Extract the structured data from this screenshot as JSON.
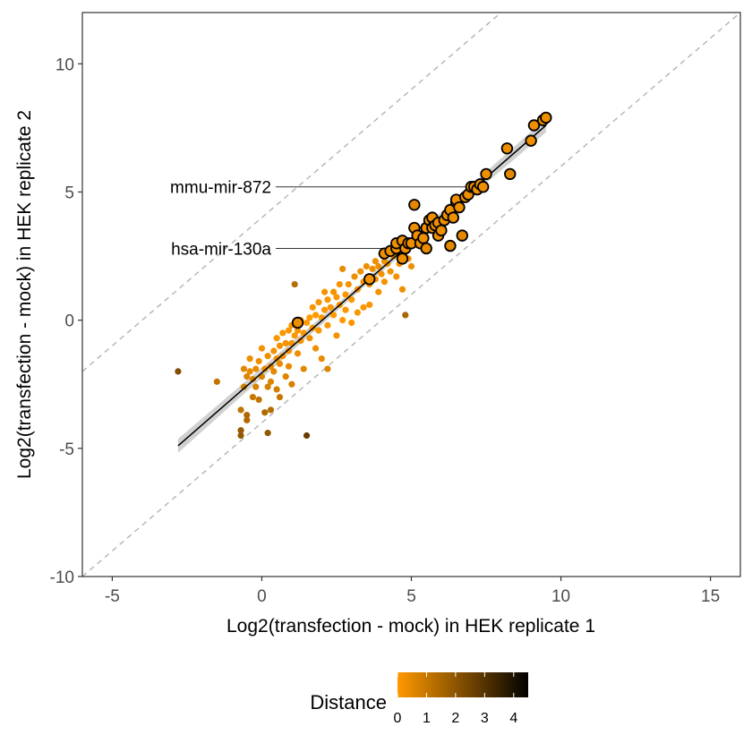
{
  "chart_data": {
    "type": "scatter",
    "xlabel": "Log2(transfection - mock) in HEK replicate 1",
    "ylabel": "Log2(transfection - mock) in HEK replicate 2",
    "xlim": [
      -6,
      16
    ],
    "ylim": [
      -10,
      12
    ],
    "x_ticks": [
      -5,
      0,
      5,
      10,
      15
    ],
    "y_ticks": [
      -10,
      -5,
      0,
      5,
      10
    ],
    "grid": false,
    "reference_lines": [
      {
        "intercept": 4,
        "slope": 1,
        "style": "dashed",
        "color": "#b3b3b3"
      },
      {
        "intercept": -4,
        "slope": 1,
        "style": "dashed",
        "color": "#b3b3b3"
      }
    ],
    "fit_line": {
      "x_start": -2.8,
      "y_start": -4.9,
      "x_end": 9.5,
      "y_end": 7.6,
      "color": "#000000",
      "ci_band_color": "#cccccc"
    },
    "color_scale": {
      "title": "Distance",
      "low_color": "#ff9900",
      "high_color": "#000000",
      "min": 0,
      "max": 4.5,
      "ticks": [
        0,
        1,
        2,
        3,
        4
      ],
      "legend_position": "bottom"
    },
    "annotations": [
      {
        "label": "mmu-mir-872",
        "x": 7.1,
        "y": 5.2
      },
      {
        "label": "hsa-mir-130a",
        "x": 4.3,
        "y": 2.8
      }
    ],
    "points_small": [
      [
        -2.8,
        -2.0,
        2.2
      ],
      [
        -1.5,
        -2.4,
        1.1
      ],
      [
        -0.7,
        -4.3,
        1.9
      ],
      [
        -0.7,
        -4.5,
        1.9
      ],
      [
        -0.7,
        -3.5,
        1.1
      ],
      [
        -0.6,
        -2.6,
        0.8
      ],
      [
        -0.6,
        -1.9,
        0.5
      ],
      [
        -0.5,
        -2.2,
        0.6
      ],
      [
        -0.5,
        -3.9,
        1.4
      ],
      [
        -0.5,
        -3.7,
        1.4
      ],
      [
        -0.4,
        -1.5,
        0.3
      ],
      [
        -0.4,
        -2.0,
        0.4
      ],
      [
        -0.3,
        -2.3,
        0.6
      ],
      [
        -0.3,
        -3.0,
        1.0
      ],
      [
        -0.2,
        -1.9,
        0.4
      ],
      [
        -0.2,
        -2.6,
        0.7
      ],
      [
        -0.1,
        -1.6,
        0.3
      ],
      [
        -0.1,
        -3.1,
        1.1
      ],
      [
        0.0,
        -2.2,
        0.6
      ],
      [
        0.0,
        -1.1,
        0.2
      ],
      [
        0.1,
        -1.9,
        0.4
      ],
      [
        0.1,
        -3.6,
        1.4
      ],
      [
        0.2,
        -1.4,
        0.3
      ],
      [
        0.2,
        -2.6,
        0.7
      ],
      [
        0.2,
        -4.4,
        1.9
      ],
      [
        0.3,
        -1.8,
        0.4
      ],
      [
        0.3,
        -2.4,
        0.6
      ],
      [
        0.3,
        -3.5,
        1.3
      ],
      [
        0.4,
        -1.2,
        0.2
      ],
      [
        0.4,
        -2.0,
        0.5
      ],
      [
        0.5,
        -0.7,
        0.1
      ],
      [
        0.5,
        -1.5,
        0.3
      ],
      [
        0.5,
        -2.7,
        0.8
      ],
      [
        0.6,
        -1.0,
        0.2
      ],
      [
        0.6,
        -1.7,
        0.4
      ],
      [
        0.6,
        -3.0,
        1.0
      ],
      [
        0.7,
        -0.5,
        0.1
      ],
      [
        0.7,
        -1.4,
        0.3
      ],
      [
        0.8,
        -0.9,
        0.2
      ],
      [
        0.8,
        -2.2,
        0.6
      ],
      [
        0.9,
        -0.4,
        0.1
      ],
      [
        0.9,
        -1.2,
        0.2
      ],
      [
        0.9,
        -1.8,
        0.4
      ],
      [
        1.0,
        -0.2,
        0.1
      ],
      [
        1.0,
        -0.9,
        0.2
      ],
      [
        1.0,
        -2.5,
        0.7
      ],
      [
        1.1,
        -0.6,
        0.1
      ],
      [
        1.1,
        1.4,
        1.3
      ],
      [
        1.2,
        -0.4,
        0.1
      ],
      [
        1.2,
        -1.3,
        0.3
      ],
      [
        1.3,
        0.0,
        0.0
      ],
      [
        1.3,
        -0.8,
        0.2
      ],
      [
        1.4,
        -0.5,
        0.1
      ],
      [
        1.4,
        -1.9,
        0.5
      ],
      [
        1.5,
        -4.5,
        2.7
      ],
      [
        1.5,
        -0.1,
        0.0
      ],
      [
        1.6,
        0.1,
        0.0
      ],
      [
        1.6,
        -0.7,
        0.2
      ],
      [
        1.7,
        0.5,
        0.1
      ],
      [
        1.7,
        -0.3,
        0.1
      ],
      [
        1.8,
        -1.1,
        0.3
      ],
      [
        1.8,
        0.2,
        0.0
      ],
      [
        1.9,
        0.7,
        0.1
      ],
      [
        1.9,
        -0.4,
        0.1
      ],
      [
        2.0,
        0.1,
        0.0
      ],
      [
        2.0,
        -1.5,
        0.4
      ],
      [
        2.1,
        0.4,
        0.1
      ],
      [
        2.1,
        1.1,
        0.2
      ],
      [
        2.2,
        0.8,
        0.1
      ],
      [
        2.2,
        -0.2,
        0.1
      ],
      [
        2.2,
        -1.9,
        0.6
      ],
      [
        2.3,
        0.5,
        0.1
      ],
      [
        2.4,
        1.1,
        0.2
      ],
      [
        2.4,
        0.2,
        0.0
      ],
      [
        2.5,
        0.9,
        0.1
      ],
      [
        2.5,
        -0.6,
        0.2
      ],
      [
        2.6,
        1.4,
        0.2
      ],
      [
        2.6,
        0.6,
        0.1
      ],
      [
        2.7,
        0.0,
        0.0
      ],
      [
        2.7,
        2.0,
        0.4
      ],
      [
        2.8,
        1.0,
        0.1
      ],
      [
        2.8,
        0.4,
        0.1
      ],
      [
        2.9,
        1.4,
        0.2
      ],
      [
        3.0,
        0.8,
        0.1
      ],
      [
        3.0,
        -0.1,
        0.1
      ],
      [
        3.1,
        1.7,
        0.3
      ],
      [
        3.2,
        1.2,
        0.2
      ],
      [
        3.2,
        0.3,
        0.1
      ],
      [
        3.3,
        1.9,
        0.3
      ],
      [
        3.4,
        1.5,
        0.2
      ],
      [
        3.4,
        0.5,
        0.1
      ],
      [
        3.5,
        2.1,
        0.3
      ],
      [
        3.6,
        1.4,
        0.2
      ],
      [
        3.6,
        0.6,
        0.1
      ],
      [
        3.7,
        2.0,
        0.3
      ],
      [
        3.8,
        1.6,
        0.2
      ],
      [
        3.8,
        2.3,
        0.3
      ],
      [
        3.9,
        1.1,
        0.2
      ],
      [
        3.9,
        2.1,
        0.3
      ],
      [
        4.0,
        1.8,
        0.2
      ],
      [
        4.0,
        2.6,
        0.4
      ],
      [
        4.1,
        2.3,
        0.3
      ],
      [
        4.1,
        1.5,
        0.2
      ],
      [
        4.2,
        2.2,
        0.3
      ],
      [
        4.3,
        1.9,
        0.2
      ],
      [
        4.3,
        2.7,
        0.3
      ],
      [
        4.4,
        2.5,
        0.3
      ],
      [
        4.5,
        1.7,
        0.2
      ],
      [
        4.6,
        2.2,
        0.2
      ],
      [
        4.7,
        1.2,
        0.3
      ],
      [
        4.8,
        0.2,
        1.5
      ],
      [
        4.8,
        2.7,
        0.3
      ],
      [
        4.9,
        2.4,
        0.2
      ],
      [
        5.0,
        2.1,
        0.3
      ]
    ],
    "points_highlighted": [
      [
        1.2,
        -0.1,
        0.3
      ],
      [
        3.6,
        1.6,
        0.2
      ],
      [
        4.1,
        2.6,
        0.3
      ],
      [
        4.3,
        2.7,
        0.3
      ],
      [
        4.5,
        2.8,
        0.3
      ],
      [
        4.5,
        3.0,
        0.3
      ],
      [
        4.7,
        3.1,
        0.3
      ],
      [
        4.8,
        2.8,
        0.3
      ],
      [
        4.9,
        3.0,
        0.3
      ],
      [
        4.7,
        2.4,
        0.3
      ],
      [
        5.0,
        3.0,
        0.3
      ],
      [
        5.1,
        3.6,
        0.3
      ],
      [
        5.1,
        4.5,
        0.5
      ],
      [
        5.2,
        3.3,
        0.3
      ],
      [
        5.3,
        3.0,
        0.3
      ],
      [
        5.4,
        3.2,
        0.3
      ],
      [
        5.5,
        3.6,
        0.3
      ],
      [
        5.5,
        2.8,
        0.4
      ],
      [
        5.6,
        3.9,
        0.3
      ],
      [
        5.7,
        3.6,
        0.3
      ],
      [
        5.7,
        4.0,
        0.3
      ],
      [
        5.8,
        3.7,
        0.3
      ],
      [
        5.9,
        3.3,
        0.3
      ],
      [
        5.9,
        3.8,
        0.3
      ],
      [
        6.0,
        3.5,
        0.3
      ],
      [
        6.1,
        3.9,
        0.3
      ],
      [
        6.2,
        4.1,
        0.3
      ],
      [
        6.3,
        2.9,
        0.5
      ],
      [
        6.3,
        4.3,
        0.3
      ],
      [
        6.4,
        4.0,
        0.3
      ],
      [
        6.5,
        4.6,
        0.3
      ],
      [
        6.5,
        4.7,
        0.3
      ],
      [
        6.6,
        4.4,
        0.3
      ],
      [
        6.7,
        3.3,
        0.5
      ],
      [
        6.8,
        4.8,
        0.3
      ],
      [
        6.9,
        4.9,
        0.3
      ],
      [
        7.0,
        5.2,
        0.3
      ],
      [
        7.1,
        5.2,
        0.3
      ],
      [
        7.2,
        5.1,
        0.3
      ],
      [
        7.3,
        5.3,
        0.3
      ],
      [
        7.4,
        5.2,
        0.3
      ],
      [
        7.5,
        5.7,
        0.3
      ],
      [
        8.2,
        6.7,
        0.3
      ],
      [
        8.3,
        5.7,
        0.5
      ],
      [
        9.0,
        7.0,
        0.3
      ],
      [
        9.1,
        7.6,
        0.3
      ],
      [
        9.4,
        7.8,
        0.3
      ],
      [
        9.5,
        7.9,
        0.3
      ]
    ]
  }
}
